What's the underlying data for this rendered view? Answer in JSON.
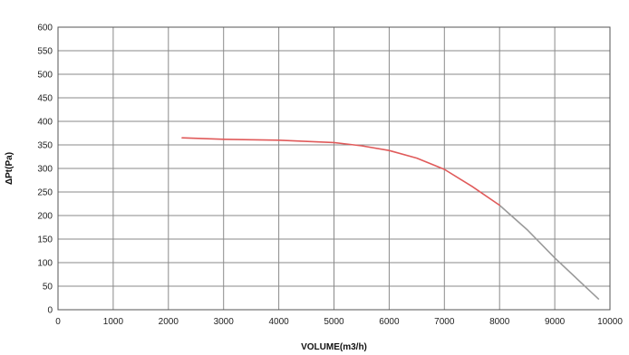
{
  "chart_data": {
    "type": "line",
    "xlabel": "VOLUME(m3/h)",
    "ylabel": "ΔPt(Pa)",
    "xlim": [
      0,
      10000
    ],
    "ylim": [
      0,
      600
    ],
    "x_ticks": [
      0,
      1000,
      2000,
      3000,
      4000,
      5000,
      6000,
      7000,
      8000,
      9000,
      10000
    ],
    "y_ticks": [
      0,
      50,
      100,
      150,
      200,
      250,
      300,
      350,
      400,
      450,
      500,
      550,
      600
    ],
    "grid": true,
    "series": [
      {
        "color": "#e05a5a",
        "tail_color": "#9a9a9a",
        "red_until_x": 8400,
        "x": [
          2250,
          3000,
          4000,
          5000,
          5500,
          6000,
          6500,
          7000,
          7500,
          8000,
          8500,
          9000,
          9500,
          9800
        ],
        "y": [
          365,
          362,
          360,
          355,
          348,
          338,
          322,
          298,
          262,
          222,
          170,
          110,
          55,
          22
        ]
      }
    ]
  }
}
